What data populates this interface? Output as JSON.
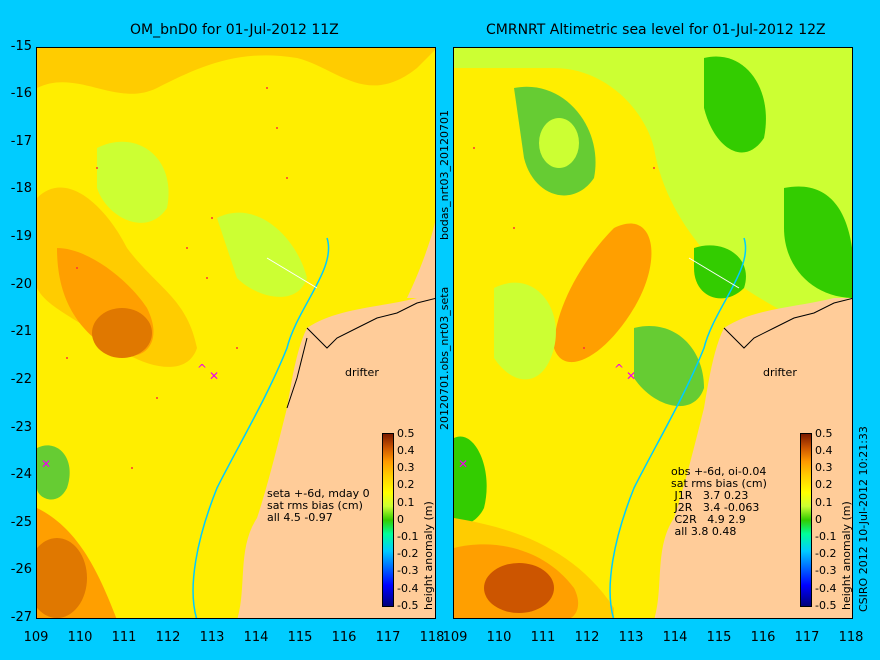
{
  "left_title": "OM_bnD0 for 01-Jul-2012 11Z",
  "right_title": "CMRNRT Altimetric sea level  for 01-Jul-2012 12Z",
  "y_ticks": [
    "-15",
    "-16",
    "-17",
    "-18",
    "-19",
    "-20",
    "-21",
    "-22",
    "-23",
    "-24",
    "-25",
    "-26",
    "-27"
  ],
  "x_ticks": [
    "109",
    "110",
    "111",
    "112",
    "113",
    "114",
    "115",
    "116",
    "117",
    "118"
  ],
  "colorbar": {
    "label": "height anomaly (m)",
    "ticks": [
      "0.5",
      "0.4",
      "0.3",
      "0.2",
      "0.1",
      "0",
      "-0.1",
      "-0.2",
      "-0.3",
      "-0.4",
      "-0.5"
    ]
  },
  "left_stats": [
    "seta +-6d, mday 0",
    "sat rms bias (cm)",
    "all 4.5 -0.97"
  ],
  "right_stats": [
    "obs +-6d, oi-0.04",
    "sat rms bias (cm)",
    " J1R   3.7 0.23",
    " J2R   3.4 -0.063",
    " C2R   4.9 2.9",
    " all 3.8 0.48"
  ],
  "drifter_label": "drifter",
  "middle_text_top": "bodas_nrt03_20120701",
  "middle_text_bottom": "20120701.obs_nrt03_seta",
  "credit": "CSIRO 2012  10-Jul-2012 10:21:33"
}
